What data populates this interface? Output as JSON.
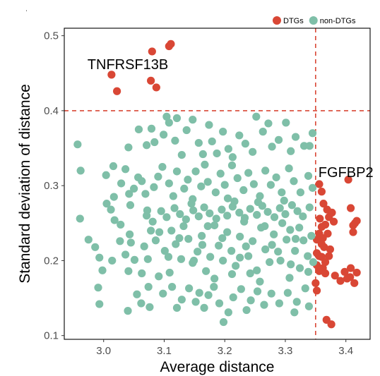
{
  "chart_data": {
    "type": "scatter",
    "xlabel": "Average distance",
    "ylabel": "Standard deviation of distance",
    "xlim": [
      2.935,
      3.44
    ],
    "ylim": [
      0.095,
      0.51
    ],
    "xticks": [
      3.0,
      3.1,
      3.2,
      3.3,
      3.4
    ],
    "yticks": [
      0.1,
      0.2,
      0.3,
      0.4,
      0.5
    ],
    "xtick_labels": [
      "3.0",
      "3.1",
      "3.2",
      "3.3",
      "3.4"
    ],
    "ytick_labels": [
      "0.1",
      "0.2",
      "0.3",
      "0.4",
      "0.5"
    ],
    "grid": false,
    "legend_position": "top-right",
    "thresholds": {
      "x": 3.35,
      "y": 0.4,
      "color": "#d94735",
      "style": "dashed"
    },
    "annotations": [
      {
        "text": "TNFRSF13B",
        "x": 3.04,
        "y": 0.462
      },
      {
        "text": "FGFBP2",
        "x": 3.4,
        "y": 0.318
      }
    ],
    "series": [
      {
        "name": "DTGs",
        "color": "#d94735",
        "points": [
          [
            3.108,
            0.486
          ],
          [
            3.111,
            0.489
          ],
          [
            3.08,
            0.479
          ],
          [
            3.013,
            0.448
          ],
          [
            3.078,
            0.44
          ],
          [
            3.087,
            0.431
          ],
          [
            3.022,
            0.426
          ],
          [
            3.404,
            0.308
          ],
          [
            3.356,
            0.302
          ],
          [
            3.36,
            0.292
          ],
          [
            3.408,
            0.27
          ],
          [
            3.363,
            0.276
          ],
          [
            3.369,
            0.268
          ],
          [
            3.377,
            0.264
          ],
          [
            3.357,
            0.256
          ],
          [
            3.372,
            0.258
          ],
          [
            3.415,
            0.25
          ],
          [
            3.418,
            0.253
          ],
          [
            3.38,
            0.252
          ],
          [
            3.412,
            0.247
          ],
          [
            3.36,
            0.245
          ],
          [
            3.366,
            0.248
          ],
          [
            3.412,
            0.238
          ],
          [
            3.356,
            0.236
          ],
          [
            3.362,
            0.23
          ],
          [
            3.37,
            0.236
          ],
          [
            3.352,
            0.228
          ],
          [
            3.36,
            0.222
          ],
          [
            3.364,
            0.218
          ],
          [
            3.374,
            0.215
          ],
          [
            3.352,
            0.21
          ],
          [
            3.356,
            0.206
          ],
          [
            3.36,
            0.205
          ],
          [
            3.372,
            0.206
          ],
          [
            3.366,
            0.198
          ],
          [
            3.352,
            0.194
          ],
          [
            3.362,
            0.19
          ],
          [
            3.356,
            0.186
          ],
          [
            3.408,
            0.19
          ],
          [
            3.398,
            0.185
          ],
          [
            3.418,
            0.184
          ],
          [
            3.407,
            0.178
          ],
          [
            3.402,
            0.176
          ],
          [
            3.414,
            0.17
          ],
          [
            3.391,
            0.173
          ],
          [
            3.382,
            0.18
          ],
          [
            3.366,
            0.183
          ],
          [
            3.35,
            0.17
          ],
          [
            3.352,
            0.16
          ],
          [
            3.368,
            0.121
          ],
          [
            3.376,
            0.115
          ]
        ]
      },
      {
        "name": "non-DTGs",
        "color": "#7fbfa8",
        "points": [
          [
            2.957,
            0.355
          ],
          [
            2.962,
            0.32
          ],
          [
            2.961,
            0.256
          ],
          [
            3.004,
            0.314
          ],
          [
            3.016,
            0.326
          ],
          [
            3.005,
            0.276
          ],
          [
            3.012,
            0.268
          ],
          [
            3.017,
            0.285
          ],
          [
            3.018,
            0.254
          ],
          [
            3.036,
            0.322
          ],
          [
            3.029,
            0.303
          ],
          [
            3.042,
            0.289
          ],
          [
            3.044,
            0.274
          ],
          [
            3.057,
            0.311
          ],
          [
            3.05,
            0.296
          ],
          [
            3.063,
            0.306
          ],
          [
            3.069,
            0.289
          ],
          [
            3.072,
            0.267
          ],
          [
            3.083,
            0.298
          ],
          [
            3.09,
            0.312
          ],
          [
            3.097,
            0.325
          ],
          [
            3.108,
            0.303
          ],
          [
            3.115,
            0.286
          ],
          [
            3.121,
            0.319
          ],
          [
            3.133,
            0.296
          ],
          [
            3.139,
            0.308
          ],
          [
            3.145,
            0.276
          ],
          [
            3.152,
            0.319
          ],
          [
            3.161,
            0.299
          ],
          [
            3.167,
            0.328
          ],
          [
            3.172,
            0.305
          ],
          [
            3.185,
            0.291
          ],
          [
            3.193,
            0.316
          ],
          [
            3.2,
            0.301
          ],
          [
            3.205,
            0.283
          ],
          [
            3.212,
            0.327
          ],
          [
            3.221,
            0.31
          ],
          [
            3.231,
            0.294
          ],
          [
            3.239,
            0.317
          ],
          [
            3.248,
            0.302
          ],
          [
            3.258,
            0.286
          ],
          [
            3.267,
            0.32
          ],
          [
            3.276,
            0.301
          ],
          [
            3.285,
            0.311
          ],
          [
            3.294,
            0.291
          ],
          [
            3.306,
            0.323
          ],
          [
            3.314,
            0.306
          ],
          [
            3.325,
            0.291
          ],
          [
            3.338,
            0.313
          ],
          [
            3.345,
            0.297
          ],
          [
            3.071,
            0.354
          ],
          [
            3.079,
            0.376
          ],
          [
            3.084,
            0.358
          ],
          [
            3.099,
            0.368
          ],
          [
            3.108,
            0.384
          ],
          [
            3.118,
            0.36
          ],
          [
            3.129,
            0.341
          ],
          [
            3.137,
            0.374
          ],
          [
            3.147,
            0.388
          ],
          [
            3.157,
            0.357
          ],
          [
            3.164,
            0.342
          ],
          [
            3.174,
            0.381
          ],
          [
            3.179,
            0.359
          ],
          [
            3.187,
            0.343
          ],
          [
            3.197,
            0.372
          ],
          [
            3.206,
            0.349
          ],
          [
            3.213,
            0.338
          ],
          [
            3.224,
            0.367
          ],
          [
            3.234,
            0.356
          ],
          [
            3.246,
            0.345
          ],
          [
            3.252,
            0.392
          ],
          [
            3.263,
            0.372
          ],
          [
            3.272,
            0.383
          ],
          [
            3.278,
            0.352
          ],
          [
            3.289,
            0.361
          ],
          [
            3.301,
            0.384
          ],
          [
            3.309,
            0.346
          ],
          [
            3.317,
            0.365
          ],
          [
            3.331,
            0.353
          ],
          [
            3.345,
            0.37
          ],
          [
            3.34,
            0.353
          ],
          [
            3.104,
            0.392
          ],
          [
            3.121,
            0.39
          ],
          [
            3.041,
            0.351
          ],
          [
            3.058,
            0.375
          ],
          [
            2.975,
            0.228
          ],
          [
            2.986,
            0.218
          ],
          [
            2.993,
            0.204
          ],
          [
            2.998,
            0.187
          ],
          [
            3.014,
            0.2
          ],
          [
            3.027,
            0.226
          ],
          [
            3.036,
            0.208
          ],
          [
            3.045,
            0.224
          ],
          [
            3.041,
            0.186
          ],
          [
            3.051,
            0.201
          ],
          [
            3.063,
            0.183
          ],
          [
            3.073,
            0.202
          ],
          [
            3.078,
            0.24
          ],
          [
            3.086,
            0.227
          ],
          [
            3.091,
            0.179
          ],
          [
            3.101,
            0.213
          ],
          [
            3.109,
            0.184
          ],
          [
            3.112,
            0.24
          ],
          [
            3.119,
            0.222
          ],
          [
            3.128,
            0.202
          ],
          [
            3.132,
            0.246
          ],
          [
            3.14,
            0.229
          ],
          [
            3.147,
            0.197
          ],
          [
            3.155,
            0.212
          ],
          [
            3.162,
            0.233
          ],
          [
            3.169,
            0.186
          ],
          [
            3.176,
            0.205
          ],
          [
            3.183,
            0.247
          ],
          [
            3.19,
            0.22
          ],
          [
            3.197,
            0.2
          ],
          [
            3.204,
            0.238
          ],
          [
            3.211,
            0.213
          ],
          [
            3.218,
            0.193
          ],
          [
            3.225,
            0.232
          ],
          [
            3.232,
            0.252
          ],
          [
            3.239,
            0.206
          ],
          [
            3.246,
            0.226
          ],
          [
            3.253,
            0.187
          ],
          [
            3.26,
            0.244
          ],
          [
            3.267,
            0.215
          ],
          [
            3.274,
            0.198
          ],
          [
            3.281,
            0.235
          ],
          [
            3.288,
            0.212
          ],
          [
            3.295,
            0.25
          ],
          [
            3.302,
            0.228
          ],
          [
            3.309,
            0.195
          ],
          [
            3.316,
            0.213
          ],
          [
            3.323,
            0.244
          ],
          [
            3.33,
            0.227
          ],
          [
            3.337,
            0.206
          ],
          [
            3.343,
            0.233
          ],
          [
            3.346,
            0.198
          ],
          [
            3.338,
            0.185
          ],
          [
            3.324,
            0.19
          ],
          [
            3.307,
            0.177
          ],
          [
            2.991,
            0.164
          ],
          [
            2.993,
            0.142
          ],
          [
            3.04,
            0.133
          ],
          [
            3.055,
            0.155
          ],
          [
            3.062,
            0.143
          ],
          [
            3.074,
            0.165
          ],
          [
            3.076,
            0.138
          ],
          [
            3.098,
            0.156
          ],
          [
            3.113,
            0.165
          ],
          [
            3.121,
            0.137
          ],
          [
            3.129,
            0.148
          ],
          [
            3.141,
            0.163
          ],
          [
            3.152,
            0.145
          ],
          [
            3.158,
            0.157
          ],
          [
            3.166,
            0.137
          ],
          [
            3.173,
            0.154
          ],
          [
            3.182,
            0.165
          ],
          [
            3.191,
            0.143
          ],
          [
            3.198,
            0.118
          ],
          [
            3.206,
            0.131
          ],
          [
            3.214,
            0.151
          ],
          [
            3.227,
            0.162
          ],
          [
            3.236,
            0.134
          ],
          [
            3.243,
            0.147
          ],
          [
            3.254,
            0.159
          ],
          [
            3.265,
            0.141
          ],
          [
            3.277,
            0.156
          ],
          [
            3.29,
            0.143
          ],
          [
            3.304,
            0.157
          ],
          [
            3.319,
            0.145
          ],
          [
            3.333,
            0.163
          ],
          [
            3.339,
            0.139
          ],
          [
            3.315,
            0.131
          ],
          [
            3.071,
            0.26
          ],
          [
            3.081,
            0.252
          ],
          [
            3.095,
            0.266
          ],
          [
            3.104,
            0.258
          ],
          [
            3.117,
            0.27
          ],
          [
            3.126,
            0.262
          ],
          [
            3.136,
            0.255
          ],
          [
            3.148,
            0.267
          ],
          [
            3.157,
            0.259
          ],
          [
            3.166,
            0.271
          ],
          [
            3.175,
            0.263
          ],
          [
            3.186,
            0.256
          ],
          [
            3.195,
            0.268
          ],
          [
            3.204,
            0.26
          ],
          [
            3.213,
            0.272
          ],
          [
            3.224,
            0.264
          ],
          [
            3.233,
            0.257
          ],
          [
            3.242,
            0.269
          ],
          [
            3.253,
            0.261
          ],
          [
            3.262,
            0.273
          ],
          [
            3.271,
            0.265
          ],
          [
            3.282,
            0.258
          ],
          [
            3.291,
            0.27
          ],
          [
            3.3,
            0.262
          ],
          [
            3.311,
            0.274
          ],
          [
            3.32,
            0.266
          ],
          [
            3.329,
            0.259
          ],
          [
            3.34,
            0.271
          ],
          [
            3.147,
            0.282
          ],
          [
            3.216,
            0.279
          ],
          [
            3.255,
            0.278
          ],
          [
            3.298,
            0.28
          ],
          [
            3.172,
            0.246
          ],
          [
            3.266,
            0.246
          ],
          [
            3.308,
            0.241
          ],
          [
            3.092,
            0.238
          ],
          [
            3.125,
            0.23
          ],
          [
            3.163,
            0.221
          ],
          [
            3.196,
            0.23
          ],
          [
            3.235,
            0.219
          ],
          [
            3.278,
            0.221
          ],
          [
            3.317,
            0.229
          ],
          [
            3.149,
            0.2
          ],
          [
            3.225,
            0.204
          ],
          [
            3.292,
            0.2
          ],
          [
            3.183,
            0.176
          ],
          [
            3.258,
            0.172
          ],
          [
            3.212,
            0.182
          ],
          [
            3.242,
            0.183
          ],
          [
            3.107,
            0.205
          ],
          [
            3.067,
            0.219
          ],
          [
            3.043,
            0.235
          ],
          [
            3.028,
            0.248
          ]
        ]
      }
    ]
  }
}
